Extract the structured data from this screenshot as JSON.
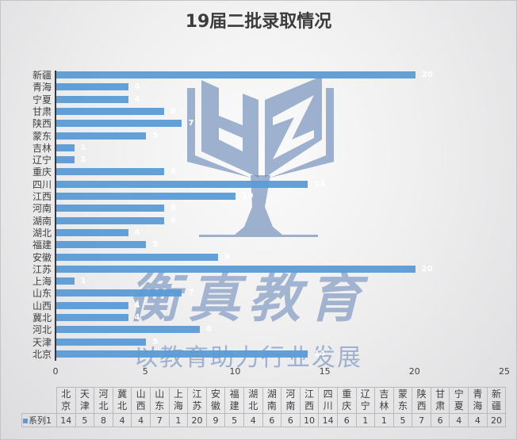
{
  "title": "19届二批录取情况",
  "watermark": {
    "logo_letters": "HZ",
    "brand": "衡真教育",
    "slogan": "以教育助力行业发展"
  },
  "colors": {
    "bar": "#5b9bd5",
    "axis": "#2d3a4a",
    "text": "#404040",
    "watermark": "#6082b4"
  },
  "axis": {
    "x_ticks": [
      "0",
      "5",
      "10",
      "15",
      "20",
      "25"
    ]
  },
  "bars_top_to_bottom": [
    {
      "label": "新疆",
      "value": 20
    },
    {
      "label": "青海",
      "value": 4
    },
    {
      "label": "宁夏",
      "value": 4
    },
    {
      "label": "甘肃",
      "value": 6
    },
    {
      "label": "陕西",
      "value": 7
    },
    {
      "label": "蒙东",
      "value": 5
    },
    {
      "label": "吉林",
      "value": 1
    },
    {
      "label": "辽宁",
      "value": 1
    },
    {
      "label": "重庆",
      "value": 6
    },
    {
      "label": "四川",
      "value": 14
    },
    {
      "label": "江西",
      "value": 10
    },
    {
      "label": "河南",
      "value": 6
    },
    {
      "label": "湖南",
      "value": 6
    },
    {
      "label": "湖北",
      "value": 4
    },
    {
      "label": "福建",
      "value": 5
    },
    {
      "label": "安徽",
      "value": 9
    },
    {
      "label": "江苏",
      "value": 20
    },
    {
      "label": "上海",
      "value": 1
    },
    {
      "label": "山东",
      "value": 7
    },
    {
      "label": "山西",
      "value": 4
    },
    {
      "label": "冀北",
      "value": 4
    },
    {
      "label": "河北",
      "value": 8
    },
    {
      "label": "天津",
      "value": 5
    },
    {
      "label": "北京",
      "value": 14
    }
  ],
  "table": {
    "series_name": "系列1",
    "columns": [
      {
        "top": "北",
        "bottom": "京",
        "value": "14"
      },
      {
        "top": "天",
        "bottom": "津",
        "value": "5"
      },
      {
        "top": "河",
        "bottom": "北",
        "value": "8"
      },
      {
        "top": "冀",
        "bottom": "北",
        "value": "4"
      },
      {
        "top": "山",
        "bottom": "西",
        "value": "4"
      },
      {
        "top": "山",
        "bottom": "东",
        "value": "7"
      },
      {
        "top": "上",
        "bottom": "海",
        "value": "1"
      },
      {
        "top": "江",
        "bottom": "苏",
        "value": "20"
      },
      {
        "top": "安",
        "bottom": "徽",
        "value": "9"
      },
      {
        "top": "福",
        "bottom": "建",
        "value": "5"
      },
      {
        "top": "湖",
        "bottom": "北",
        "value": "4"
      },
      {
        "top": "湖",
        "bottom": "南",
        "value": "6"
      },
      {
        "top": "河",
        "bottom": "南",
        "value": "6"
      },
      {
        "top": "江",
        "bottom": "西",
        "value": "10"
      },
      {
        "top": "四",
        "bottom": "川",
        "value": "14"
      },
      {
        "top": "重",
        "bottom": "庆",
        "value": "6"
      },
      {
        "top": "辽",
        "bottom": "宁",
        "value": "1"
      },
      {
        "top": "吉",
        "bottom": "林",
        "value": "1"
      },
      {
        "top": "蒙",
        "bottom": "东",
        "value": "5"
      },
      {
        "top": "陕",
        "bottom": "西",
        "value": "7"
      },
      {
        "top": "甘",
        "bottom": "肃",
        "value": "6"
      },
      {
        "top": "宁",
        "bottom": "夏",
        "value": "4"
      },
      {
        "top": "青",
        "bottom": "海",
        "value": "4"
      },
      {
        "top": "新",
        "bottom": "疆",
        "value": "20"
      }
    ]
  },
  "chart_data": {
    "type": "bar",
    "orientation": "horizontal",
    "title": "19届二批录取情况",
    "xlabel": "",
    "ylabel": "",
    "xlim": [
      0,
      25
    ],
    "x_ticks": [
      0,
      5,
      10,
      15,
      20,
      25
    ],
    "grid": false,
    "legend": {
      "position": "data-table",
      "entries": [
        "系列1"
      ]
    },
    "data_labels": true,
    "categories": [
      "北京",
      "天津",
      "河北",
      "冀北",
      "山西",
      "山东",
      "上海",
      "江苏",
      "安徽",
      "福建",
      "湖北",
      "湖南",
      "河南",
      "江西",
      "四川",
      "重庆",
      "辽宁",
      "吉林",
      "蒙东",
      "陕西",
      "甘肃",
      "宁夏",
      "青海",
      "新疆"
    ],
    "series": [
      {
        "name": "系列1",
        "values": [
          14,
          5,
          8,
          4,
          4,
          7,
          1,
          20,
          9,
          5,
          4,
          6,
          6,
          10,
          14,
          6,
          1,
          1,
          5,
          7,
          6,
          4,
          4,
          20
        ]
      }
    ]
  }
}
